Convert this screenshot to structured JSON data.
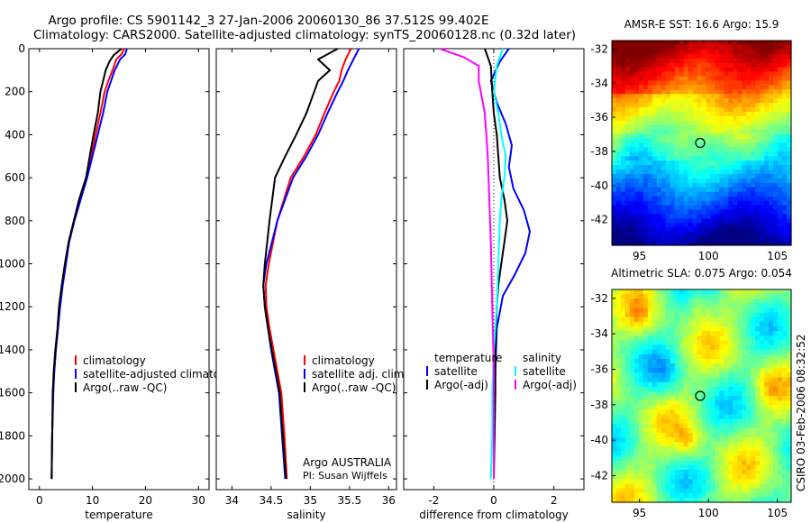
{
  "figure": {
    "title_line1": "Argo profile: CS 5901142_3 27-Jan-2006 20060130_86 37.512S 99.402E",
    "title_line2": "Climatology: CARS2000. Satellite-adjusted climatology: synTS_20060128.nc (0.32d later)",
    "side_stamp": "CSIRO 03-Feb-2006 08:32:52",
    "colors": {
      "red": "#ff0000",
      "blue": "#0000ff",
      "black": "#000000",
      "cyan": "#00ffff",
      "magenta": "#ff00ff"
    }
  },
  "chart_data": [
    {
      "type": "line",
      "id": "temperature",
      "xlabel": "temperature",
      "ylabel": "",
      "xlim": [
        -2,
        32
      ],
      "ylim": [
        2050,
        0
      ],
      "xticks": [
        0,
        10,
        20,
        30
      ],
      "yticks": [
        0,
        200,
        400,
        600,
        800,
        1000,
        1200,
        1400,
        1600,
        1800,
        2000
      ],
      "legend": [
        "climatology",
        "satellite-adjusted climatology",
        "Argo(..raw -QC)"
      ],
      "series": [
        {
          "name": "climatology",
          "color": "red",
          "x": [
            16.0,
            15.5,
            14.5,
            13.8,
            13.0,
            12.3,
            11.5,
            10.6,
            9.8,
            8.8,
            7.5,
            6.5,
            5.5,
            4.9,
            4.3,
            3.8,
            3.5,
            3.1,
            2.8,
            2.6,
            2.4,
            2.3
          ],
          "y": [
            0,
            25,
            50,
            100,
            150,
            200,
            300,
            400,
            500,
            600,
            700,
            800,
            900,
            1000,
            1100,
            1200,
            1300,
            1400,
            1500,
            1600,
            1800,
            2000
          ]
        },
        {
          "name": "satellite-adjusted climatology",
          "color": "blue",
          "x": [
            16.5,
            16.2,
            15.2,
            14.2,
            13.5,
            12.8,
            12.0,
            11.0,
            10.0,
            9.0,
            7.8,
            6.6,
            5.6,
            5.0,
            4.4,
            3.9,
            3.5,
            3.1,
            2.8,
            2.6,
            2.4,
            2.3
          ],
          "y": [
            0,
            25,
            50,
            100,
            150,
            200,
            300,
            400,
            500,
            600,
            700,
            800,
            900,
            1000,
            1100,
            1200,
            1300,
            1400,
            1500,
            1600,
            1800,
            2000
          ]
        },
        {
          "name": "Argo(..raw -QC)",
          "color": "black",
          "x": [
            15.5,
            14.0,
            13.2,
            12.5,
            12.0,
            11.5,
            11.0,
            10.2,
            9.5,
            8.8,
            7.5,
            6.5,
            5.5,
            4.8,
            4.2,
            3.7,
            3.4,
            3.0,
            2.7,
            2.5,
            2.4,
            2.3
          ],
          "y": [
            0,
            30,
            60,
            100,
            150,
            200,
            300,
            400,
            500,
            600,
            700,
            800,
            900,
            1000,
            1100,
            1200,
            1300,
            1400,
            1500,
            1600,
            1800,
            2000
          ]
        }
      ]
    },
    {
      "type": "line",
      "id": "salinity",
      "xlabel": "salinity",
      "ylabel": "",
      "xlim": [
        33.8,
        36.1
      ],
      "ylim": [
        2050,
        0
      ],
      "xticks": [
        34,
        34.5,
        35,
        35.5,
        36
      ],
      "yticks": [
        0,
        200,
        400,
        600,
        800,
        1000,
        1200,
        1400,
        1600,
        1800,
        2000
      ],
      "legend": [
        "climatology",
        "satellite adj. clim.",
        "Argo(..raw -QC)"
      ],
      "annotation": [
        "Argo AUSTRALIA",
        "PI: Susan Wijffels"
      ],
      "series": [
        {
          "name": "climatology",
          "color": "red",
          "x": [
            35.52,
            35.45,
            35.4,
            35.37,
            35.3,
            35.18,
            35.07,
            34.92,
            34.75,
            34.58,
            34.47,
            34.43,
            34.44,
            34.48,
            34.53,
            34.58,
            34.63,
            34.67,
            34.7
          ],
          "y": [
            0,
            50,
            100,
            150,
            200,
            300,
            400,
            500,
            600,
            800,
            1000,
            1100,
            1200,
            1300,
            1400,
            1500,
            1600,
            1800,
            2000
          ]
        },
        {
          "name": "satellite adj. clim.",
          "color": "blue",
          "x": [
            35.62,
            35.55,
            35.48,
            35.42,
            35.35,
            35.22,
            35.1,
            34.95,
            34.78,
            34.58,
            34.44,
            34.4,
            34.42,
            34.46,
            34.5,
            34.55,
            34.6,
            34.64,
            34.68
          ],
          "y": [
            0,
            50,
            100,
            150,
            200,
            300,
            400,
            500,
            600,
            800,
            1000,
            1100,
            1200,
            1300,
            1400,
            1500,
            1600,
            1800,
            2000
          ]
        },
        {
          "name": "Argo(..raw -QC)",
          "color": "black",
          "x": [
            35.35,
            35.1,
            35.25,
            35.1,
            35.05,
            34.95,
            34.82,
            34.68,
            34.55,
            34.48,
            34.42,
            34.4,
            34.42,
            34.46,
            34.51,
            34.56,
            34.61,
            34.65,
            34.69
          ],
          "y": [
            0,
            50,
            100,
            150,
            200,
            300,
            400,
            500,
            600,
            800,
            1000,
            1100,
            1200,
            1300,
            1400,
            1500,
            1600,
            1800,
            2000
          ]
        }
      ]
    },
    {
      "type": "line",
      "id": "difference",
      "xlabel": "difference from climatology",
      "ylabel": "",
      "xlim": [
        -3,
        3
      ],
      "ylim": [
        2050,
        0
      ],
      "xticks": [
        -2,
        0,
        2
      ],
      "yticks": [
        0,
        200,
        400,
        600,
        800,
        1000,
        1200,
        1400,
        1600,
        1800,
        2000
      ],
      "legend_headers": [
        "temperature",
        "salinity"
      ],
      "legend": [
        "satellite",
        "Argo(-adj)",
        "satellite",
        "Argo(-adj)"
      ],
      "series": [
        {
          "name": "temperature satellite",
          "color": "blue",
          "x": [
            0.5,
            0.2,
            -0.1,
            0.1,
            0.4,
            0.6,
            0.5,
            0.65,
            1.0,
            1.2,
            1.05,
            0.7,
            0.3,
            0.1,
            0.05,
            0.0,
            0.0
          ],
          "y": [
            0,
            60,
            150,
            250,
            350,
            450,
            550,
            650,
            750,
            850,
            950,
            1050,
            1150,
            1300,
            1500,
            1800,
            2000
          ]
        },
        {
          "name": "temperature Argo(-adj)",
          "color": "black",
          "x": [
            -0.3,
            -0.1,
            -0.05,
            0.0,
            0.1,
            0.15,
            0.2,
            0.35,
            0.45,
            0.35,
            0.25,
            0.15,
            0.1,
            0.05,
            0.05,
            0.0
          ],
          "y": [
            0,
            80,
            200,
            300,
            400,
            500,
            600,
            700,
            800,
            900,
            1000,
            1100,
            1200,
            1400,
            1600,
            2000
          ]
        },
        {
          "name": "salinity satellite",
          "color": "cyan",
          "x": [
            0.3,
            0.1,
            0.0,
            0.15,
            0.25,
            0.4,
            0.35,
            0.25,
            0.2,
            0.15,
            0.1,
            0.0,
            -0.05,
            -0.05,
            -0.1
          ],
          "y": [
            0,
            80,
            200,
            300,
            400,
            500,
            600,
            700,
            800,
            1000,
            1200,
            1400,
            1600,
            1800,
            2000
          ]
        },
        {
          "name": "salinity Argo(-adj)",
          "color": "magenta",
          "x": [
            -1.8,
            -1.0,
            -0.5,
            -0.5,
            -0.3,
            -0.2,
            -0.15,
            -0.1,
            -0.05,
            0.0,
            0.0,
            0.0
          ],
          "y": [
            0,
            40,
            80,
            150,
            300,
            500,
            700,
            900,
            1200,
            1500,
            1800,
            2000
          ]
        }
      ]
    },
    {
      "type": "heatmap",
      "id": "amsre_sst",
      "title": "AMSR-E SST: 16.6 Argo: 15.9",
      "xlim": [
        93,
        106
      ],
      "ylim": [
        -43.5,
        -31.5
      ],
      "xticks": [
        95,
        100,
        105
      ],
      "yticks": [
        -32,
        -34,
        -36,
        -38,
        -40,
        -42
      ],
      "marker": {
        "lon": 99.4,
        "lat": -37.5
      },
      "colormap": "jet",
      "value_range_note": "warm (red) to the north, cool (blue) to the south"
    },
    {
      "type": "heatmap",
      "id": "altimetric_sla",
      "title": "Altimetric SLA: 0.075 Argo: 0.054",
      "xlim": [
        93,
        106
      ],
      "ylim": [
        -43.5,
        -31.5
      ],
      "xticks": [
        95,
        100,
        105
      ],
      "yticks": [
        -32,
        -34,
        -36,
        -38,
        -40,
        -42
      ],
      "marker": {
        "lon": 99.4,
        "lat": -37.5
      },
      "colormap": "jet"
    }
  ]
}
